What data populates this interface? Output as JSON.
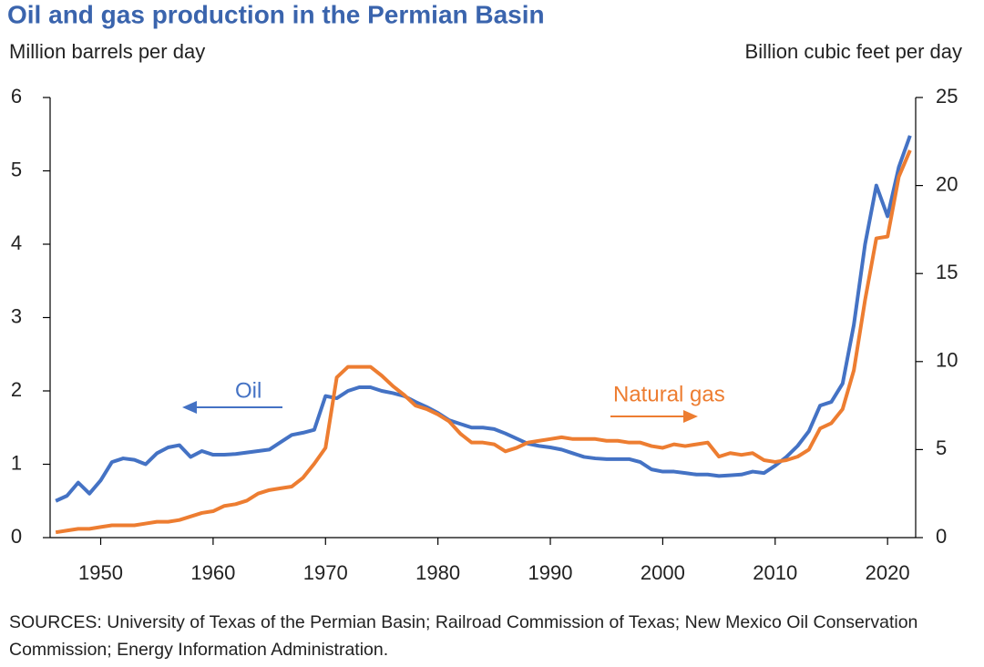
{
  "chart_data": {
    "type": "line",
    "title": "Oil and gas production in the Permian Basin",
    "y_label": "Million  barrels per day",
    "y2_label": "Billion  cubic feet per day",
    "annotations": [
      "Oil",
      "Natural gas"
    ],
    "note": "SOURCES: University of Texas of the Permian Basin; Railroad Commission of Texas; New Mexico Oil Conservation Commission; Energy Information Administration.",
    "x": [
      1946,
      1947,
      1948,
      1949,
      1950,
      1951,
      1952,
      1953,
      1954,
      1955,
      1956,
      1957,
      1958,
      1959,
      1960,
      1961,
      1962,
      1963,
      1964,
      1965,
      1966,
      1967,
      1968,
      1969,
      1970,
      1971,
      1972,
      1973,
      1974,
      1975,
      1976,
      1977,
      1978,
      1979,
      1980,
      1981,
      1982,
      1983,
      1984,
      1985,
      1986,
      1987,
      1988,
      1989,
      1990,
      1991,
      1992,
      1993,
      1994,
      1995,
      1996,
      1997,
      1998,
      1999,
      2000,
      2001,
      2002,
      2003,
      2004,
      2005,
      2006,
      2007,
      2008,
      2009,
      2010,
      2011,
      2012,
      2013,
      2014,
      2015,
      2016,
      2017,
      2018,
      2019,
      2020,
      2021,
      2022
    ],
    "series": [
      {
        "name": "Oil",
        "color": "#4472c4",
        "axis": "y",
        "values": [
          0.5,
          0.57,
          0.75,
          0.6,
          0.78,
          1.03,
          1.08,
          1.06,
          1.0,
          1.15,
          1.23,
          1.26,
          1.1,
          1.18,
          1.13,
          1.13,
          1.14,
          1.16,
          1.18,
          1.2,
          1.3,
          1.4,
          1.43,
          1.47,
          1.93,
          1.9,
          2.0,
          2.05,
          2.05,
          2.0,
          1.97,
          1.93,
          1.85,
          1.78,
          1.7,
          1.6,
          1.55,
          1.5,
          1.5,
          1.48,
          1.42,
          1.35,
          1.28,
          1.25,
          1.23,
          1.2,
          1.15,
          1.1,
          1.08,
          1.07,
          1.07,
          1.07,
          1.03,
          0.93,
          0.9,
          0.9,
          0.88,
          0.86,
          0.86,
          0.84,
          0.85,
          0.86,
          0.9,
          0.88,
          0.98,
          1.1,
          1.25,
          1.45,
          1.8,
          1.85,
          2.1,
          2.9,
          4.0,
          4.8,
          4.38,
          5.05,
          5.48
        ]
      },
      {
        "name": "Natural gas",
        "color": "#ed7d31",
        "axis": "y2",
        "values": [
          0.3,
          0.4,
          0.5,
          0.5,
          0.6,
          0.7,
          0.7,
          0.7,
          0.8,
          0.9,
          0.9,
          1.0,
          1.2,
          1.4,
          1.5,
          1.8,
          1.9,
          2.1,
          2.5,
          2.7,
          2.8,
          2.9,
          3.4,
          4.2,
          5.1,
          9.1,
          9.7,
          9.7,
          9.7,
          9.2,
          8.6,
          8.1,
          7.5,
          7.3,
          7.0,
          6.6,
          5.9,
          5.4,
          5.4,
          5.3,
          4.9,
          5.1,
          5.4,
          5.5,
          5.6,
          5.7,
          5.6,
          5.6,
          5.6,
          5.5,
          5.5,
          5.4,
          5.4,
          5.2,
          5.1,
          5.3,
          5.2,
          5.3,
          5.4,
          4.6,
          4.8,
          4.7,
          4.8,
          4.4,
          4.3,
          4.4,
          4.6,
          5.0,
          6.2,
          6.5,
          7.3,
          9.5,
          13.5,
          17.0,
          17.1,
          20.5,
          22.0
        ]
      }
    ],
    "xlim": [
      1945.5,
      2022.5
    ],
    "xticks": [
      1950,
      1960,
      1970,
      1980,
      1990,
      2000,
      2010,
      2020
    ],
    "ylim": [
      0,
      6
    ],
    "yticks": [
      0,
      1,
      2,
      3,
      4,
      5,
      6
    ],
    "y2lim": [
      0,
      25
    ],
    "y2ticks": [
      0,
      5,
      10,
      15,
      20,
      25
    ]
  }
}
